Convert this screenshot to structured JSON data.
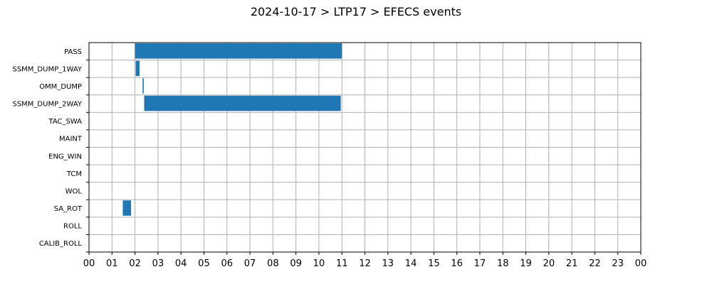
{
  "chart_data": {
    "type": "bar",
    "orientation": "horizontal",
    "title": "2024-10-17 > LTP17 > EFECS events",
    "xlabel": "",
    "ylabel": "",
    "xlim": [
      0,
      24
    ],
    "x_tick_labels": [
      "00",
      "01",
      "02",
      "03",
      "04",
      "05",
      "06",
      "07",
      "08",
      "09",
      "10",
      "11",
      "12",
      "13",
      "14",
      "15",
      "16",
      "17",
      "18",
      "19",
      "20",
      "21",
      "22",
      "23",
      "00"
    ],
    "categories": [
      "PASS",
      "SSMM_DUMP_1WAY",
      "OMM_DUMP",
      "SSMM_DUMP_2WAY",
      "TAC_SWA",
      "MAINT",
      "ENG_WIN",
      "TCM",
      "WOL",
      "SA_ROT",
      "ROLL",
      "CALIB_ROLL"
    ],
    "events": [
      {
        "category": "PASS",
        "start": 2.0,
        "end": 11.0
      },
      {
        "category": "SSMM_DUMP_1WAY",
        "start": 2.03,
        "end": 2.2
      },
      {
        "category": "OMM_DUMP",
        "start": 2.33,
        "end": 2.38
      },
      {
        "category": "SSMM_DUMP_2WAY",
        "start": 2.4,
        "end": 10.95
      },
      {
        "category": "SA_ROT",
        "start": 1.47,
        "end": 1.83
      }
    ],
    "bar_color": "#1f77b4",
    "grid": true,
    "legend": "none"
  }
}
